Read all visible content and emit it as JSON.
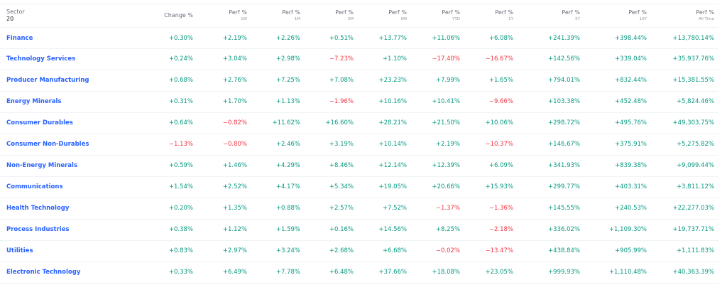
{
  "colors": {
    "positive": "#089981",
    "negative": "#f23645",
    "link": "#2962ff"
  },
  "header": {
    "sector_label": "Sector",
    "sector_count": "20",
    "columns": [
      {
        "main": "Change %",
        "sub": ""
      },
      {
        "main": "Perf %",
        "sub": "1W"
      },
      {
        "main": "Perf %",
        "sub": "1M"
      },
      {
        "main": "Perf %",
        "sub": "3M"
      },
      {
        "main": "Perf %",
        "sub": "6M"
      },
      {
        "main": "Perf %",
        "sub": "YTD"
      },
      {
        "main": "Perf %",
        "sub": "1Y"
      },
      {
        "main": "Perf %",
        "sub": "5Y"
      },
      {
        "main": "Perf %",
        "sub": "10Y"
      },
      {
        "main": "Perf %",
        "sub": "All Time"
      }
    ]
  },
  "rows": [
    {
      "name": "Finance",
      "values": [
        "+0.30%",
        "+2.19%",
        "+2.26%",
        "+0.51%",
        "+13.77%",
        "+11.06%",
        "+6.08%",
        "+241.39%",
        "+398.44%",
        "+13,780.14%"
      ]
    },
    {
      "name": "Technology Services",
      "values": [
        "+0.24%",
        "+3.04%",
        "+2.98%",
        "−7.23%",
        "+1.10%",
        "−17.40%",
        "−16.67%",
        "+142.56%",
        "+339.04%",
        "+35,937.76%"
      ]
    },
    {
      "name": "Producer Manufacturing",
      "values": [
        "+0.68%",
        "+2.76%",
        "+7.25%",
        "+7.08%",
        "+23.23%",
        "+7.99%",
        "+1.65%",
        "+794.01%",
        "+832.44%",
        "+15,381.55%"
      ]
    },
    {
      "name": "Energy Minerals",
      "values": [
        "+0.31%",
        "+1.70%",
        "+1.13%",
        "−1.96%",
        "+10.16%",
        "+10.41%",
        "−9.66%",
        "+103.38%",
        "+452.48%",
        "+5,824.46%"
      ]
    },
    {
      "name": "Consumer Durables",
      "values": [
        "+0.64%",
        "−0.82%",
        "+11.62%",
        "+16.60%",
        "+28.21%",
        "+21.50%",
        "+10.06%",
        "+298.72%",
        "+495.76%",
        "+49,303.75%"
      ]
    },
    {
      "name": "Consumer Non-Durables",
      "values": [
        "−1.13%",
        "−0.80%",
        "+2.46%",
        "+3.19%",
        "+10.14%",
        "+2.19%",
        "−10.37%",
        "+146.67%",
        "+375.91%",
        "+5,275.82%"
      ]
    },
    {
      "name": "Non-Energy Minerals",
      "values": [
        "+0.59%",
        "+1.46%",
        "+4.29%",
        "+8.46%",
        "+12.14%",
        "+12.39%",
        "+6.09%",
        "+341.93%",
        "+839.38%",
        "+9,099.44%"
      ]
    },
    {
      "name": "Communications",
      "values": [
        "+1.54%",
        "+2.52%",
        "+4.17%",
        "+5.34%",
        "+19.05%",
        "+20.66%",
        "+15.93%",
        "+299.77%",
        "+403.31%",
        "+3,811.12%"
      ]
    },
    {
      "name": "Health Technology",
      "values": [
        "+0.20%",
        "+1.35%",
        "+0.88%",
        "+2.57%",
        "+7.52%",
        "−1.37%",
        "−1.36%",
        "+145.55%",
        "+240.53%",
        "+22,277.03%"
      ]
    },
    {
      "name": "Process Industries",
      "values": [
        "+0.38%",
        "+1.12%",
        "+1.59%",
        "+0.16%",
        "+14.56%",
        "+8.25%",
        "−2.18%",
        "+336.02%",
        "+1,109.30%",
        "+19,737.71%"
      ]
    },
    {
      "name": "Utilities",
      "values": [
        "+0.83%",
        "+2.97%",
        "+3.24%",
        "+2.68%",
        "+6.68%",
        "−0.02%",
        "−13.47%",
        "+438.84%",
        "+905.99%",
        "+1,111.83%"
      ]
    },
    {
      "name": "Electronic Technology",
      "values": [
        "+0.33%",
        "+6.49%",
        "+7.78%",
        "+6.48%",
        "+37.66%",
        "+18.08%",
        "+23.05%",
        "+999.93%",
        "+1,110.48%",
        "+40,363.39%"
      ]
    }
  ]
}
